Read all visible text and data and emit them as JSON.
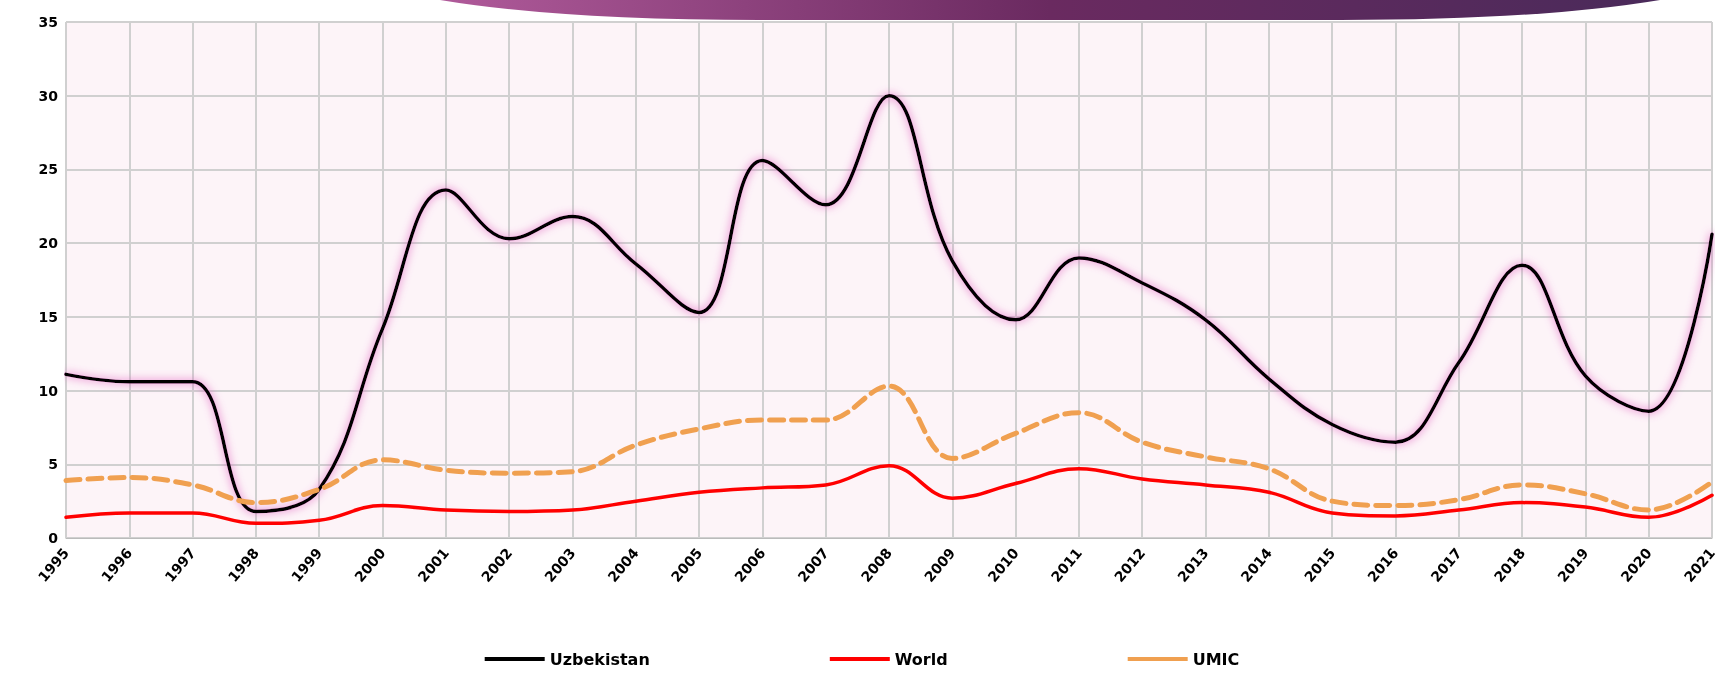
{
  "chart_data": {
    "type": "line",
    "categories": [
      "1995",
      "1996",
      "1997",
      "1998",
      "1999",
      "2000",
      "2001",
      "2002",
      "2003",
      "2004",
      "2005",
      "2006",
      "2007",
      "2008",
      "2009",
      "2010",
      "2011",
      "2012",
      "2013",
      "2014",
      "2015",
      "2016",
      "2017",
      "2018",
      "2019",
      "2020",
      "2021"
    ],
    "series": [
      {
        "name": "Uzbekistan",
        "color": "#000000",
        "line_style": "solid",
        "values": [
          11.1,
          10.6,
          10.6,
          1.8,
          3.3,
          14.2,
          23.6,
          20.3,
          21.8,
          18.6,
          15.3,
          25.6,
          22.6,
          30.0,
          18.8,
          14.8,
          19.0,
          17.3,
          14.8,
          10.8,
          7.7,
          6.5,
          11.9,
          18.5,
          11.0,
          8.6,
          20.6
        ]
      },
      {
        "name": "World",
        "color": "#ff0000",
        "line_style": "solid",
        "values": [
          1.4,
          1.7,
          1.7,
          1.0,
          1.2,
          2.2,
          1.9,
          1.8,
          1.9,
          2.5,
          3.1,
          3.4,
          3.6,
          4.9,
          2.7,
          3.7,
          4.7,
          4.0,
          3.6,
          3.1,
          1.7,
          1.5,
          1.9,
          2.4,
          2.1,
          1.4,
          2.9
        ]
      },
      {
        "name": "UMIC",
        "color": "#f0a050",
        "line_style": "dashed",
        "values": [
          3.9,
          4.1,
          3.6,
          2.4,
          3.3,
          5.3,
          4.6,
          4.4,
          4.5,
          6.3,
          7.4,
          8.0,
          8.0,
          10.3,
          5.4,
          7.1,
          8.5,
          6.5,
          5.5,
          4.7,
          2.5,
          2.2,
          2.6,
          3.6,
          3.0,
          1.9,
          3.8
        ]
      }
    ],
    "ylim": [
      0,
      35
    ],
    "yticks": [
      0,
      5,
      10,
      15,
      20,
      25,
      30,
      35
    ],
    "grid": true,
    "legend": "bottom",
    "marker": "none"
  }
}
